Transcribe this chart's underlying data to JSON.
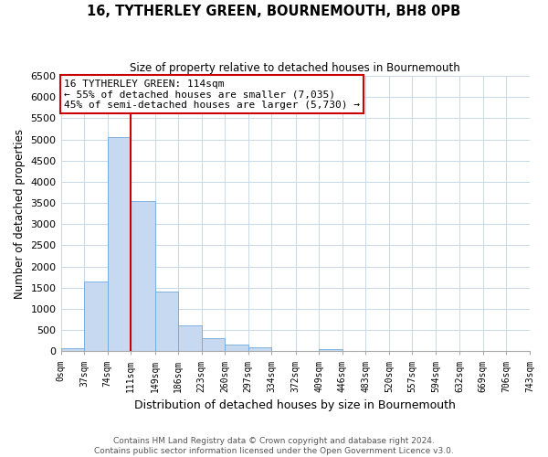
{
  "title": "16, TYTHERLEY GREEN, BOURNEMOUTH, BH8 0PB",
  "subtitle": "Size of property relative to detached houses in Bournemouth",
  "xlabel": "Distribution of detached houses by size in Bournemouth",
  "ylabel": "Number of detached properties",
  "bin_edges": [
    0,
    37,
    74,
    111,
    149,
    186,
    223,
    260,
    297,
    334,
    372,
    409,
    446,
    483,
    520,
    557,
    594,
    632,
    669,
    706,
    743
  ],
  "bar_heights": [
    70,
    1650,
    5050,
    3550,
    1420,
    610,
    300,
    160,
    90,
    0,
    0,
    55,
    0,
    0,
    0,
    0,
    0,
    0,
    0,
    0
  ],
  "bar_color": "#c6d9f0",
  "bar_edge_color": "#6fa8dc",
  "vline_x": 111,
  "vline_color": "#cc0000",
  "ylim": [
    0,
    6500
  ],
  "xlim": [
    0,
    743
  ],
  "annotation_line1": "16 TYTHERLEY GREEN: 114sqm",
  "annotation_line2": "← 55% of detached houses are smaller (7,035)",
  "annotation_line3": "45% of semi-detached houses are larger (5,730) →",
  "annotation_box_color": "#ffffff",
  "annotation_box_edge_color": "#cc0000",
  "footer_line1": "Contains HM Land Registry data © Crown copyright and database right 2024.",
  "footer_line2": "Contains public sector information licensed under the Open Government Licence v3.0.",
  "tick_labels": [
    "0sqm",
    "37sqm",
    "74sqm",
    "111sqm",
    "149sqm",
    "186sqm",
    "223sqm",
    "260sqm",
    "297sqm",
    "334sqm",
    "372sqm",
    "409sqm",
    "446sqm",
    "483sqm",
    "520sqm",
    "557sqm",
    "594sqm",
    "632sqm",
    "669sqm",
    "706sqm",
    "743sqm"
  ],
  "yticks": [
    0,
    500,
    1000,
    1500,
    2000,
    2500,
    3000,
    3500,
    4000,
    4500,
    5000,
    5500,
    6000,
    6500
  ]
}
